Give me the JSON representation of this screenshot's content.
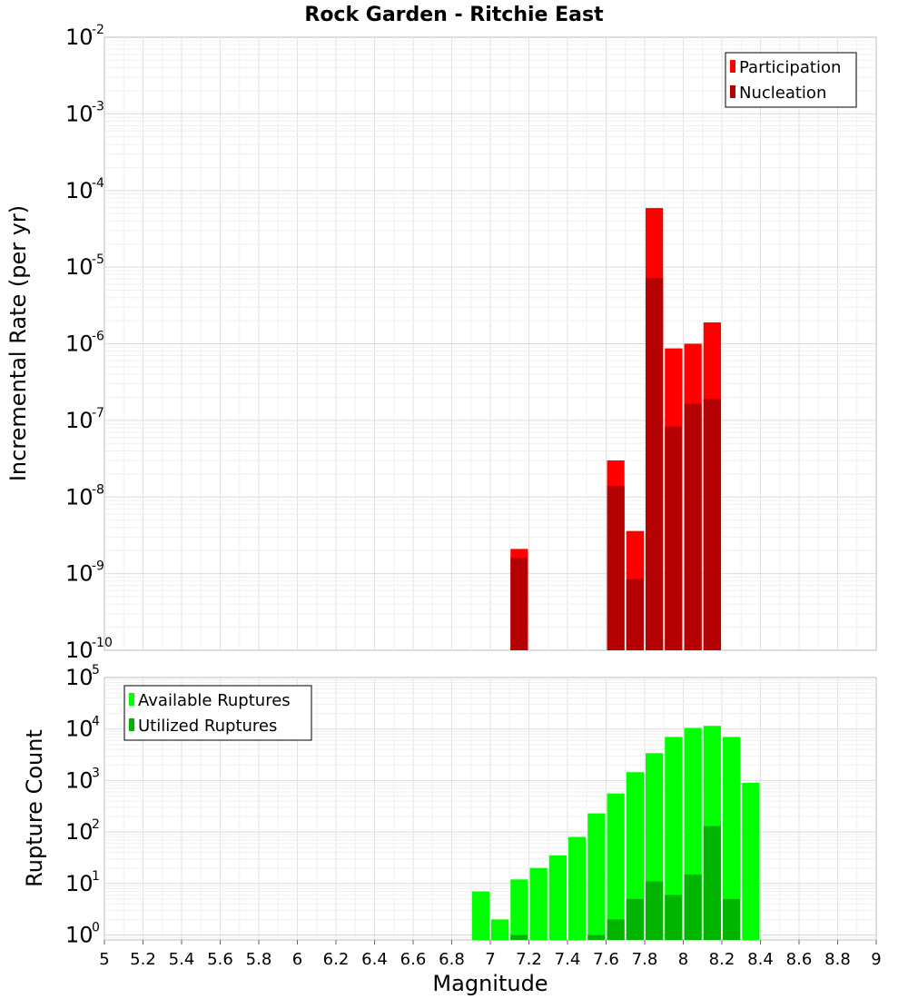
{
  "chart_data": [
    {
      "type": "bar",
      "title": "Rock Garden - Ritchie East",
      "xlabel": "",
      "ylabel": "Incremental Rate (per yr)",
      "yscale": "log",
      "xlim": [
        5,
        9
      ],
      "ylim": [
        1e-10,
        0.01
      ],
      "y_tick_exponents": [
        "-10",
        "-9",
        "-8",
        "-7",
        "-6",
        "-5",
        "-4",
        "-3",
        "-2"
      ],
      "legend_position": "top-right",
      "grid": true,
      "bar_width": 0.1,
      "series": [
        {
          "name": "Participation",
          "color": "#ff0000",
          "x": [
            7.15,
            7.65,
            7.75,
            7.85,
            7.95,
            8.05,
            8.15
          ],
          "values": [
            2.1e-09,
            3e-08,
            3.6e-09,
            5.9e-05,
            8.7e-07,
            1e-06,
            1.9e-06
          ]
        },
        {
          "name": "Nucleation",
          "color": "#b40000",
          "x": [
            7.15,
            7.65,
            7.75,
            7.85,
            7.95,
            8.05,
            8.15
          ],
          "values": [
            1.6e-09,
            1.4e-08,
            8.5e-10,
            7.2e-06,
            8.3e-08,
            1.65e-07,
            1.9e-07
          ]
        }
      ]
    },
    {
      "type": "bar",
      "title": "",
      "xlabel": "Magnitude",
      "ylabel": "Rupture Count",
      "yscale": "log",
      "xlim": [
        5,
        9
      ],
      "ylim": [
        0.8,
        100000
      ],
      "x_ticks": [
        "5",
        "5.2",
        "5.4",
        "5.6",
        "5.8",
        "6",
        "6.2",
        "6.4",
        "6.6",
        "6.8",
        "7",
        "7.2",
        "7.4",
        "7.6",
        "7.8",
        "8",
        "8.2",
        "8.4",
        "8.6",
        "8.8",
        "9"
      ],
      "y_tick_exponents": [
        "0",
        "1",
        "2",
        "3",
        "4",
        "5"
      ],
      "legend_position": "top-left",
      "grid": true,
      "bar_width": 0.1,
      "series": [
        {
          "name": "Available Ruptures",
          "color": "#00ff00",
          "x": [
            6.95,
            7.05,
            7.15,
            7.25,
            7.35,
            7.45,
            7.55,
            7.65,
            7.75,
            7.85,
            7.95,
            8.05,
            8.15,
            8.25,
            8.35
          ],
          "values": [
            7,
            2,
            12,
            20,
            35,
            80,
            230,
            560,
            1450,
            3400,
            7000,
            10500,
            11500,
            7000,
            900
          ]
        },
        {
          "name": "Utilized Ruptures",
          "color": "#00b400",
          "x": [
            7.15,
            7.55,
            7.65,
            7.75,
            7.85,
            7.95,
            8.05,
            8.15,
            8.25
          ],
          "values": [
            1,
            1,
            2,
            5,
            11,
            6,
            15,
            130,
            5
          ]
        }
      ]
    }
  ]
}
